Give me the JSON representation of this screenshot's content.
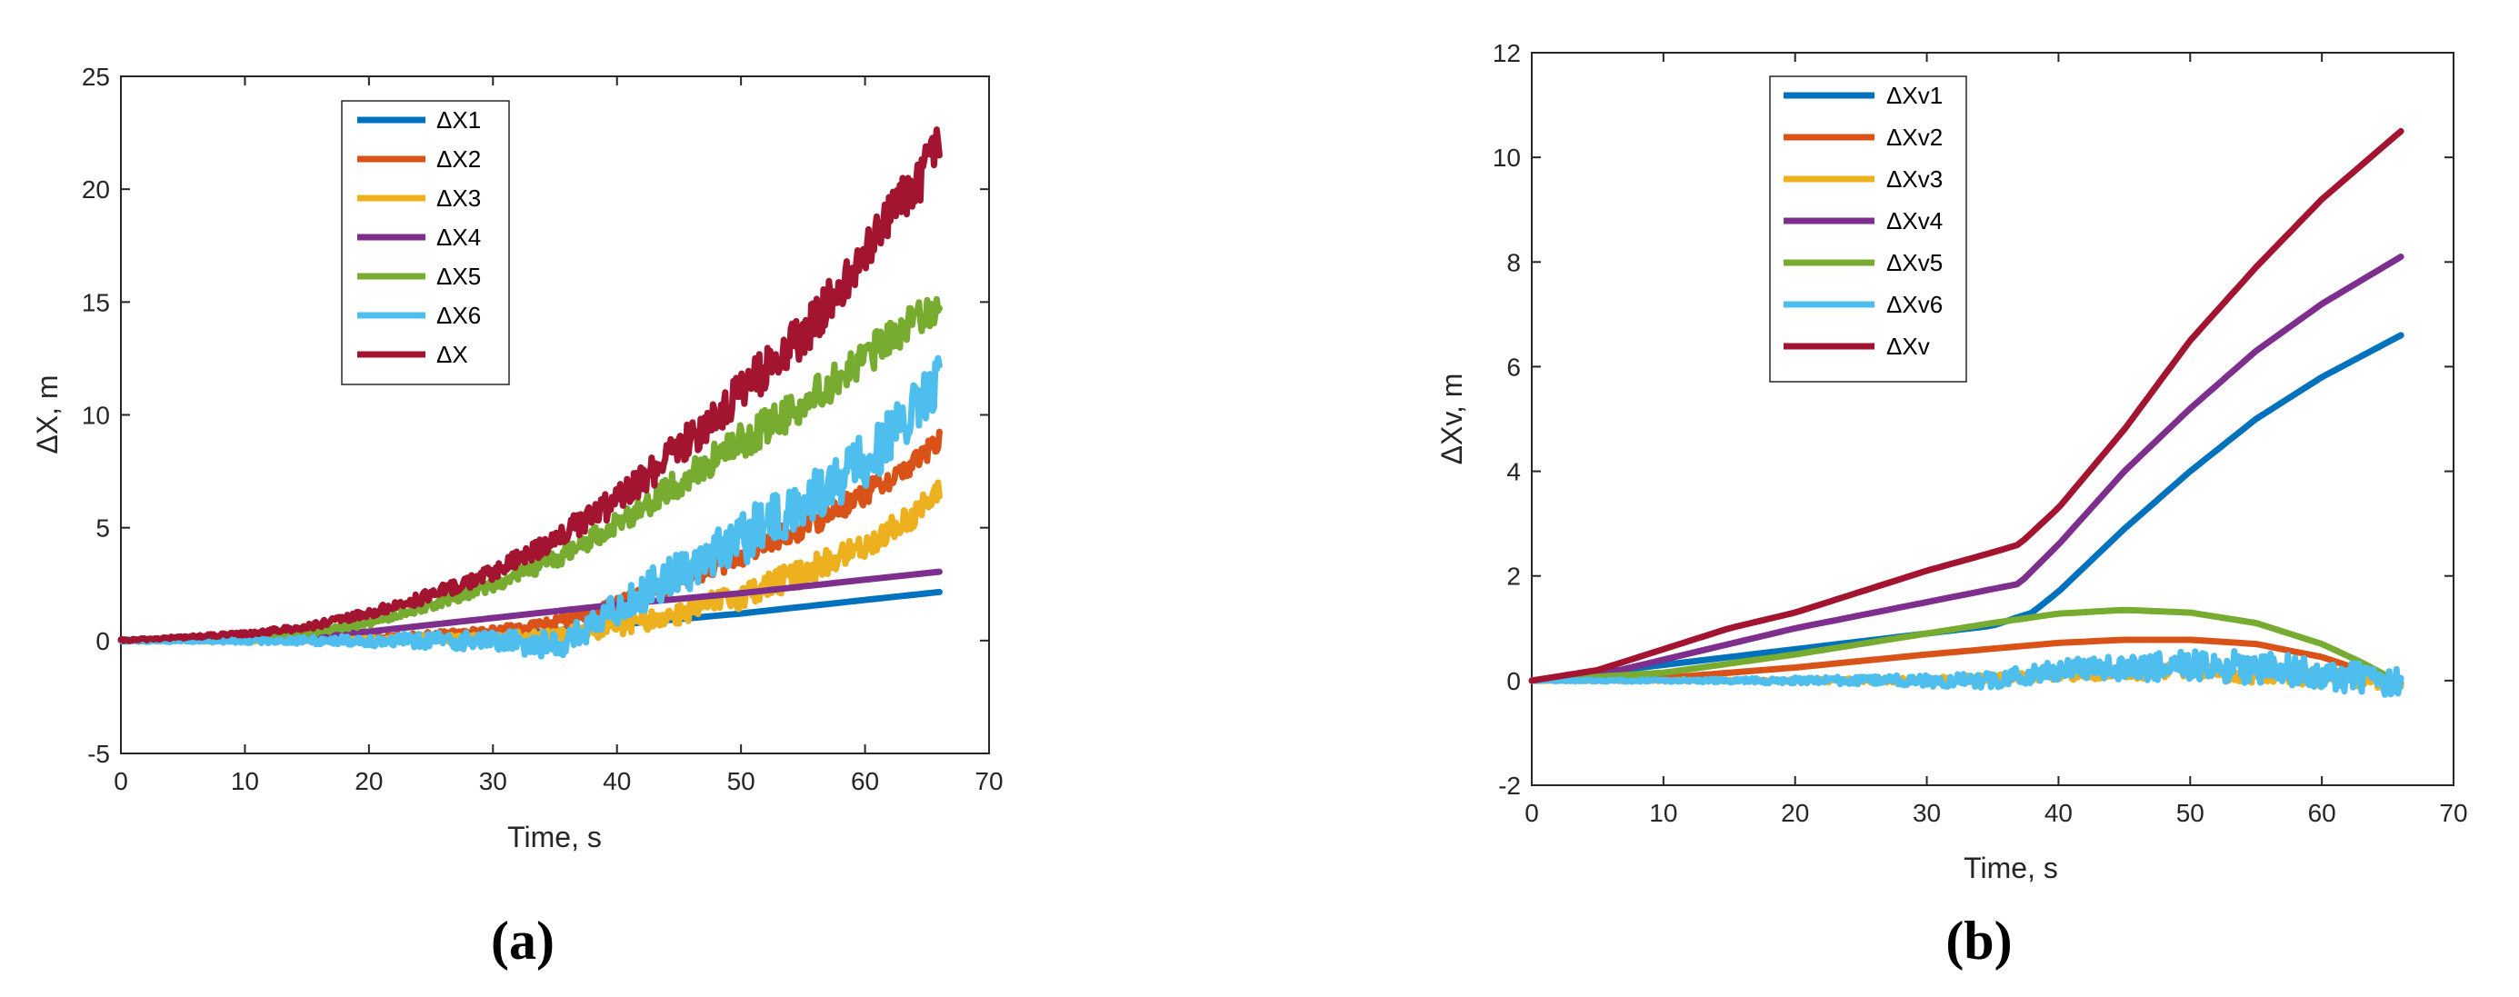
{
  "chart_data": [
    {
      "type": "line",
      "panel_label": "a",
      "xlabel": "Time, s",
      "ylabel": "ΔX, m",
      "xlim": [
        0,
        70
      ],
      "ylim": [
        -5,
        25
      ],
      "xticks": [
        0,
        10,
        20,
        30,
        40,
        50,
        60,
        70
      ],
      "yticks": [
        -5,
        0,
        5,
        10,
        15,
        20,
        25
      ],
      "grid": false,
      "legend_position": "top-center",
      "series": [
        {
          "name": "ΔX1",
          "color": "#0072BD",
          "noise": 0,
          "x": [
            0,
            10,
            20,
            30,
            40,
            50,
            60,
            66
          ],
          "y": [
            0,
            0,
            0.05,
            0.2,
            0.7,
            1.2,
            1.8,
            2.15
          ]
        },
        {
          "name": "ΔX2",
          "color": "#D95319",
          "noise": 0.5,
          "x": [
            0,
            10,
            20,
            30,
            35,
            40,
            45,
            50,
            55,
            60,
            63,
            66
          ],
          "y": [
            0,
            0.02,
            0.1,
            0.4,
            0.8,
            1.6,
            2.6,
            3.8,
            5.0,
            6.5,
            7.5,
            8.8
          ]
        },
        {
          "name": "ΔX3",
          "color": "#EDB120",
          "noise": 0.6,
          "x": [
            0,
            10,
            20,
            30,
            35,
            40,
            45,
            50,
            55,
            60,
            63,
            66
          ],
          "y": [
            0,
            0,
            0.05,
            0.1,
            0.2,
            0.6,
            1.2,
            2.0,
            3.0,
            4.2,
            5.2,
            6.5
          ]
        },
        {
          "name": "ΔX4",
          "color": "#7E2F8E",
          "noise": 0,
          "x": [
            0,
            10,
            20,
            30,
            40,
            50,
            60,
            66
          ],
          "y": [
            0,
            0.05,
            0.4,
            1.0,
            1.6,
            2.1,
            2.7,
            3.05
          ]
        },
        {
          "name": "ΔX5",
          "color": "#77AC30",
          "noise": 0.8,
          "x": [
            0,
            10,
            15,
            20,
            25,
            30,
            35,
            40,
            45,
            50,
            55,
            60,
            63,
            66
          ],
          "y": [
            0,
            0.1,
            0.3,
            0.8,
            1.6,
            2.5,
            3.6,
            5.2,
            7.0,
            8.8,
            10.5,
            12.5,
            13.8,
            15.0
          ]
        },
        {
          "name": "ΔX6",
          "color": "#4DBEEE",
          "noise": 1.2,
          "x": [
            0,
            10,
            20,
            30,
            35,
            36,
            38,
            40,
            45,
            50,
            55,
            60,
            63,
            66
          ],
          "y": [
            0,
            0,
            0,
            0,
            -0.2,
            0,
            0.5,
            1.5,
            3.0,
            4.5,
            6.0,
            8.0,
            9.5,
            11.5
          ]
        },
        {
          "name": "ΔX",
          "color": "#A2142F",
          "noise": 1.0,
          "x": [
            0,
            10,
            15,
            20,
            25,
            30,
            35,
            40,
            45,
            50,
            55,
            60,
            62,
            64,
            66
          ],
          "y": [
            0,
            0.3,
            0.6,
            1.2,
            2.0,
            3.0,
            4.5,
            6.2,
            8.5,
            11.0,
            13.5,
            17.0,
            19.0,
            20.0,
            22.0
          ]
        }
      ]
    },
    {
      "type": "line",
      "panel_label": "b",
      "xlabel": "Time, s",
      "ylabel": "ΔXv, m",
      "xlim": [
        0,
        70
      ],
      "ylim": [
        -2,
        12
      ],
      "xticks": [
        0,
        10,
        20,
        30,
        40,
        50,
        60,
        70
      ],
      "yticks": [
        -2,
        0,
        2,
        4,
        6,
        8,
        10,
        12
      ],
      "grid": false,
      "legend_position": "top-center",
      "series": [
        {
          "name": "ΔXv1",
          "color": "#0072BD",
          "noise": 0,
          "x": [
            0,
            10,
            20,
            30,
            35,
            38,
            40,
            45,
            50,
            55,
            60,
            66
          ],
          "y": [
            0,
            0.3,
            0.6,
            0.9,
            1.05,
            1.3,
            1.7,
            2.9,
            4.0,
            5.0,
            5.8,
            6.6
          ]
        },
        {
          "name": "ΔXv2",
          "color": "#D95319",
          "noise": 0,
          "x": [
            0,
            10,
            20,
            30,
            40,
            45,
            50,
            55,
            60,
            63,
            66
          ],
          "y": [
            0,
            0.05,
            0.25,
            0.5,
            0.72,
            0.78,
            0.78,
            0.7,
            0.45,
            0.2,
            -0.05
          ]
        },
        {
          "name": "ΔXv3",
          "color": "#EDB120",
          "noise": 0.15,
          "x": [
            0,
            10,
            20,
            30,
            40,
            50,
            55,
            60,
            63,
            66
          ],
          "y": [
            0,
            0,
            0,
            0,
            0.1,
            0.2,
            0.1,
            0.05,
            0.02,
            -0.05
          ]
        },
        {
          "name": "ΔXv4",
          "color": "#7E2F8E",
          "noise": 0,
          "x": [
            0,
            5,
            10,
            20,
            30,
            35,
            37,
            40,
            45,
            50,
            55,
            60,
            66
          ],
          "y": [
            0,
            0.1,
            0.4,
            1.0,
            1.5,
            1.75,
            1.85,
            2.6,
            4.0,
            5.2,
            6.3,
            7.2,
            8.1
          ]
        },
        {
          "name": "ΔXv5",
          "color": "#77AC30",
          "noise": 0,
          "x": [
            0,
            10,
            20,
            30,
            35,
            40,
            45,
            50,
            55,
            60,
            63,
            66
          ],
          "y": [
            0,
            0.15,
            0.5,
            0.9,
            1.1,
            1.28,
            1.35,
            1.3,
            1.1,
            0.7,
            0.35,
            -0.05
          ]
        },
        {
          "name": "ΔXv6",
          "color": "#4DBEEE",
          "noise": 0.3,
          "x": [
            0,
            10,
            20,
            30,
            35,
            40,
            45,
            50,
            55,
            60,
            63,
            66
          ],
          "y": [
            0,
            0,
            0,
            0,
            0,
            0.2,
            0.25,
            0.3,
            0.25,
            0.15,
            0.05,
            -0.05
          ]
        },
        {
          "name": "ΔXv",
          "color": "#A2142F",
          "noise": 0,
          "x": [
            0,
            5,
            10,
            15,
            20,
            25,
            30,
            35,
            37,
            40,
            45,
            50,
            55,
            60,
            66
          ],
          "y": [
            0,
            0.2,
            0.6,
            1.0,
            1.3,
            1.7,
            2.1,
            2.45,
            2.6,
            3.3,
            4.8,
            6.5,
            7.9,
            9.2,
            10.5
          ]
        }
      ]
    }
  ],
  "captions": {
    "a": "(a)",
    "b": "(b)"
  }
}
